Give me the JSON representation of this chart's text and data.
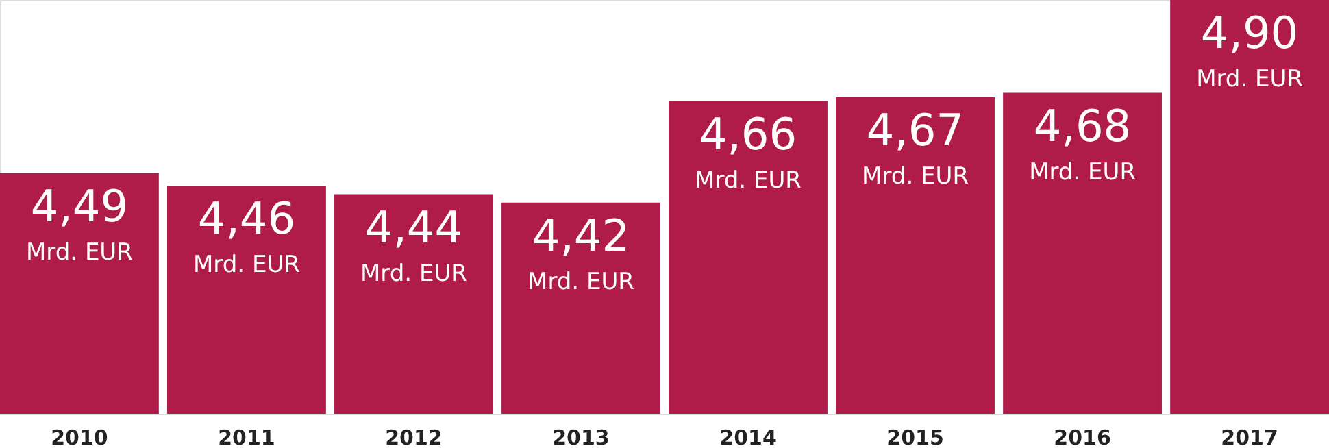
{
  "chart_data": {
    "type": "bar",
    "categories": [
      "2010",
      "2011",
      "2012",
      "2013",
      "2014",
      "2015",
      "2016",
      "2017"
    ],
    "values": [
      4.49,
      4.46,
      4.44,
      4.42,
      4.66,
      4.67,
      4.68,
      4.9
    ],
    "value_labels": [
      "4,49",
      "4,46",
      "4,44",
      "4,42",
      "4,66",
      "4,67",
      "4,68",
      "4,90"
    ],
    "annotations": [
      {
        "text": "Mrd. EUR",
        "x": "2010",
        "y": 4.49
      },
      {
        "text": "Mrd. EUR",
        "x": "2011",
        "y": 4.46
      },
      {
        "text": "Mrd. EUR",
        "x": "2012",
        "y": 4.44
      },
      {
        "text": "Mrd. EUR",
        "x": "2013",
        "y": 4.42
      },
      {
        "text": "Mrd. EUR",
        "x": "2014",
        "y": 4.66
      },
      {
        "text": "Mrd. EUR",
        "x": "2015",
        "y": 4.67
      },
      {
        "text": "Mrd. EUR",
        "x": "2016",
        "y": 4.68
      },
      {
        "text": "Mrd. EUR",
        "x": "2017",
        "y": 4.9
      }
    ],
    "color": "#b01c4a",
    "ylim": [
      3.92,
      4.9
    ],
    "tick_labels": "x",
    "grid": false
  }
}
